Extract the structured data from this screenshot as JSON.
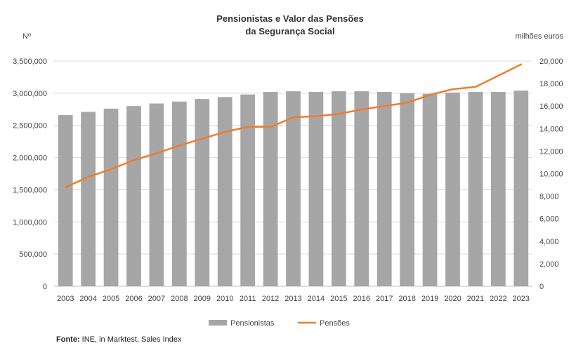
{
  "chart_data": {
    "type": "bar+line",
    "title_line1": "Pensionistas e Valor das Pensões",
    "title_line2": "da Segurança Social",
    "ylabel_left": "Nº",
    "ylabel_right": "milhões euros",
    "categories": [
      "2003",
      "2004",
      "2005",
      "2006",
      "2007",
      "2008",
      "2009",
      "2010",
      "2011",
      "2012",
      "2013",
      "2014",
      "2015",
      "2016",
      "2017",
      "2018",
      "2019",
      "2020",
      "2021",
      "2022",
      "2023"
    ],
    "series": [
      {
        "name": "Pensionistas",
        "type": "bar",
        "axis": "left",
        "color": "#a6a6a6",
        "values": [
          2660000,
          2710000,
          2760000,
          2800000,
          2840000,
          2870000,
          2910000,
          2940000,
          2980000,
          3020000,
          3030000,
          3020000,
          3030000,
          3030000,
          3020000,
          3000000,
          2990000,
          3010000,
          3020000,
          3020000,
          3040000
        ]
      },
      {
        "name": "Pensões",
        "type": "line",
        "axis": "right",
        "color": "#ed7d31",
        "values": [
          8800,
          9700,
          10400,
          11200,
          11800,
          12500,
          13100,
          13700,
          14150,
          14150,
          15000,
          15100,
          15300,
          15700,
          16000,
          16300,
          17000,
          17500,
          17700,
          18700,
          19700
        ]
      }
    ],
    "ylim_left": [
      0,
      3500000
    ],
    "yticks_left": [
      "0",
      "500,000",
      "1,000,000",
      "1,500,000",
      "2,000,000",
      "2,500,000",
      "3,000,000",
      "3,500,000"
    ],
    "ylim_right": [
      0,
      20000
    ],
    "yticks_right": [
      "0",
      "2,000",
      "4,000",
      "6,000",
      "8,000",
      "10,000",
      "12,000",
      "14,000",
      "16,000",
      "18,000",
      "20,000"
    ],
    "grid": true,
    "legend_position": "bottom"
  },
  "source": {
    "label": "Fonte:",
    "text": " INE, in Marktest, Sales Index"
  }
}
